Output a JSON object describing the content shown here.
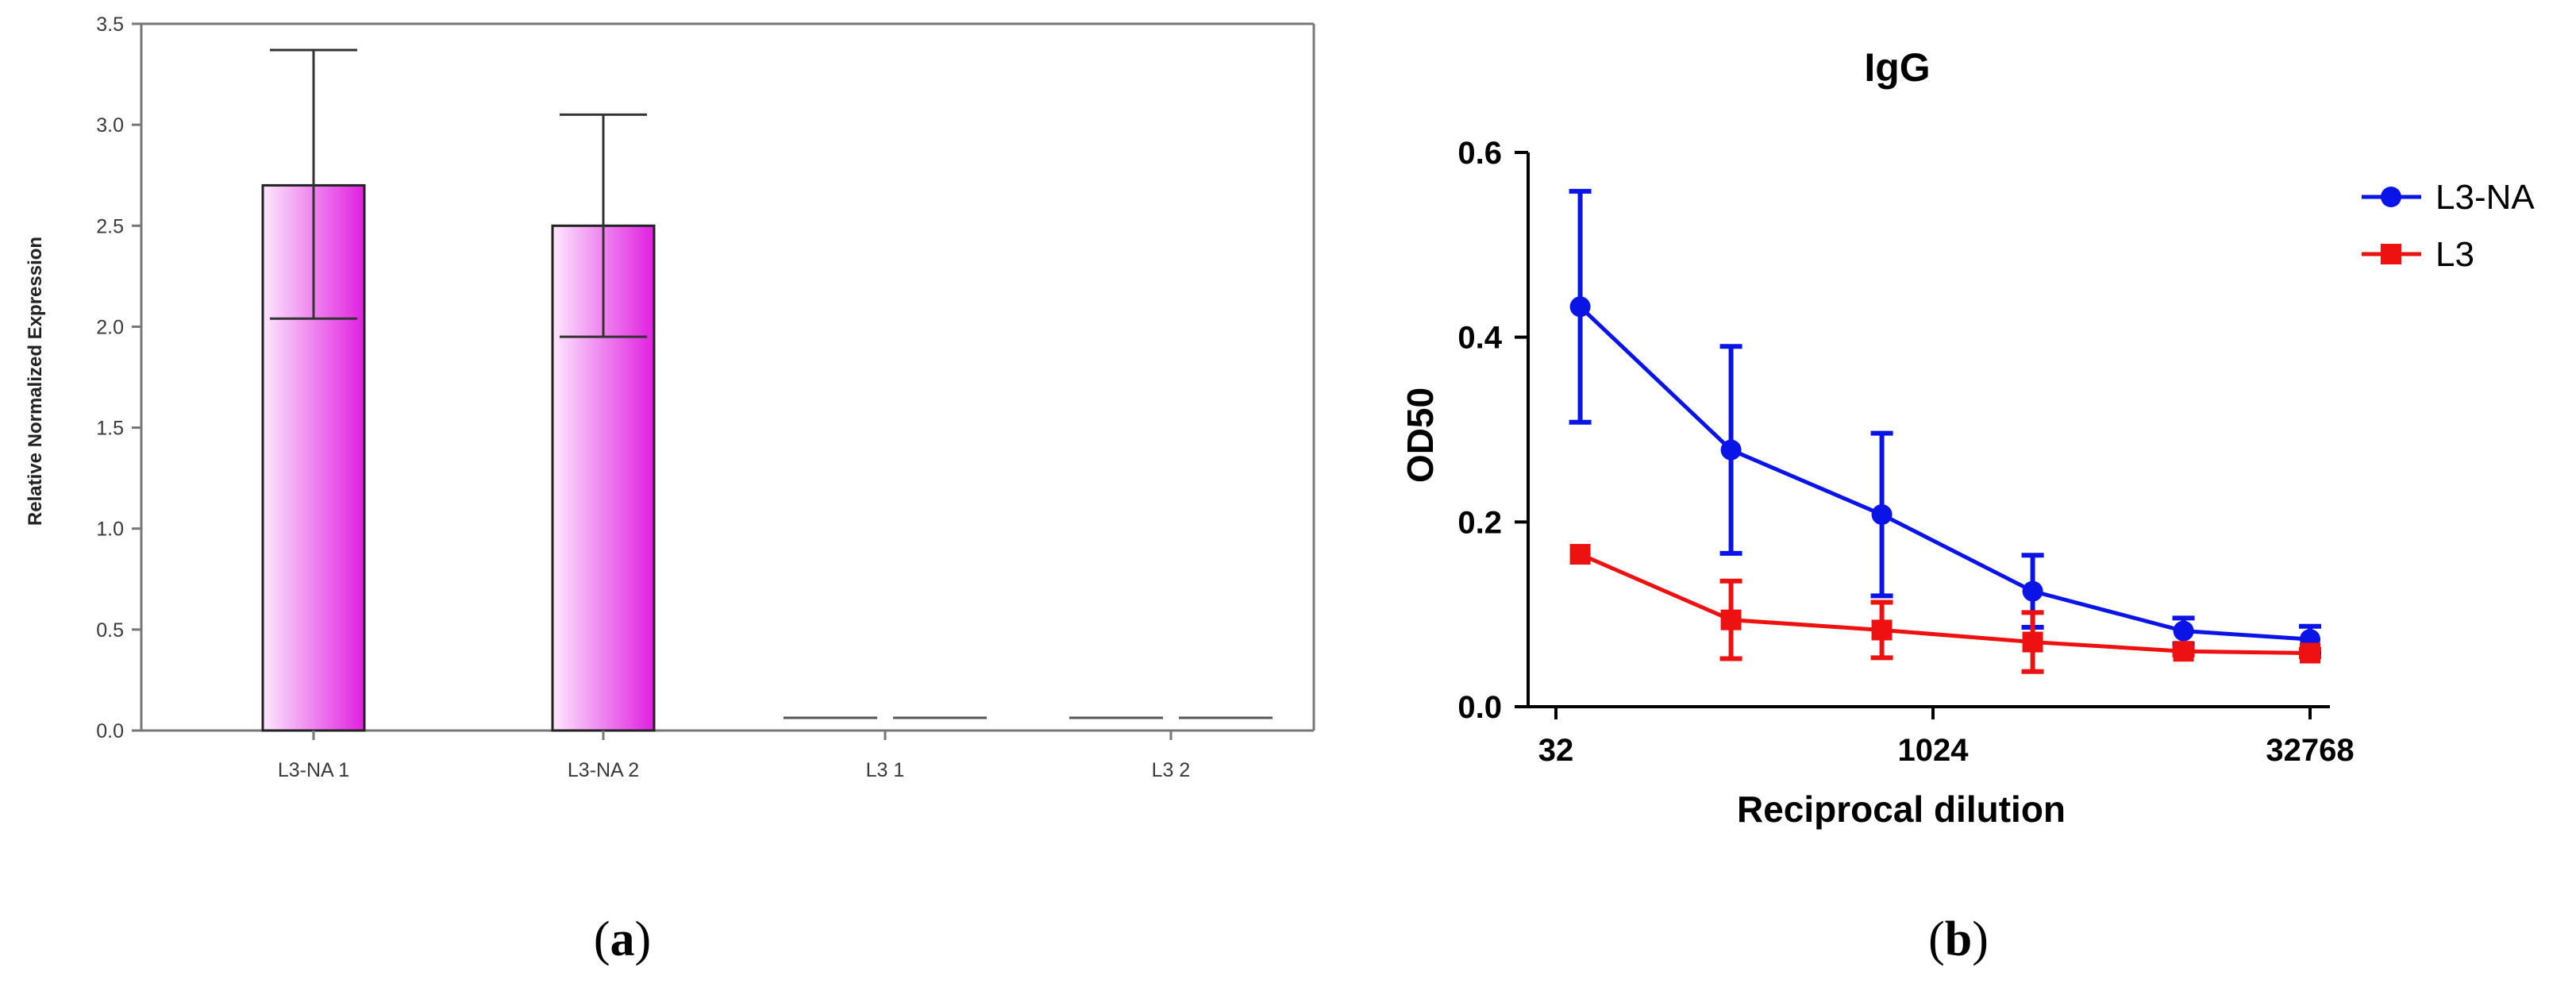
{
  "panels": {
    "a": {
      "label_open": "(",
      "label_letter": "a",
      "label_close": ")"
    },
    "b": {
      "label_open": "(",
      "label_letter": "b",
      "label_close": ")"
    }
  },
  "colors": {
    "bar_fill_light": "#fde8fd",
    "bar_fill_dark": "#e020e0",
    "l3na": "#0a14e6",
    "l3": "#ee1111"
  },
  "chart_data": [
    {
      "type": "bar",
      "categories": [
        "L3-NA 1",
        "L3-NA 2",
        "L3 1",
        "L3 2"
      ],
      "values": [
        2.7,
        2.5,
        0.0,
        0.0
      ],
      "error_low": [
        2.04,
        1.95,
        0.0,
        0.0
      ],
      "error_high": [
        3.37,
        3.05,
        0.0,
        0.0
      ],
      "title": "",
      "xlabel": "",
      "ylabel": "Relative Normalized Expression",
      "ylim": [
        0,
        3.5
      ],
      "yticks": [
        "0.0",
        "0.5",
        "1.0",
        "1.5",
        "2.0",
        "2.5",
        "3.0",
        "3.5"
      ],
      "grid": false,
      "legend": "none"
    },
    {
      "type": "line",
      "title": "IgG",
      "xlabel": "Reciprocal dilution",
      "ylabel": "OD50",
      "x_scale": "log2",
      "xlim": [
        32,
        32768
      ],
      "ylim": [
        0,
        0.6
      ],
      "xticks": [
        "32",
        "1024",
        "32768"
      ],
      "yticks": [
        "0.0",
        "0.2",
        "0.4",
        "0.6"
      ],
      "x": [
        40,
        160,
        640,
        2560,
        10240,
        32768
      ],
      "series": [
        {
          "name": "L3-NA",
          "marker": "circle",
          "y": [
            0.433,
            0.278,
            0.208,
            0.125,
            0.082,
            0.073
          ],
          "err": [
            0.125,
            0.112,
            0.088,
            0.039,
            0.014,
            0.014
          ]
        },
        {
          "name": "L3",
          "marker": "square",
          "y": [
            0.165,
            0.094,
            0.083,
            0.07,
            0.06,
            0.058
          ],
          "err": [
            0.0,
            0.042,
            0.03,
            0.032,
            0.004,
            0.004
          ]
        }
      ],
      "legend": "right",
      "grid": false
    }
  ]
}
